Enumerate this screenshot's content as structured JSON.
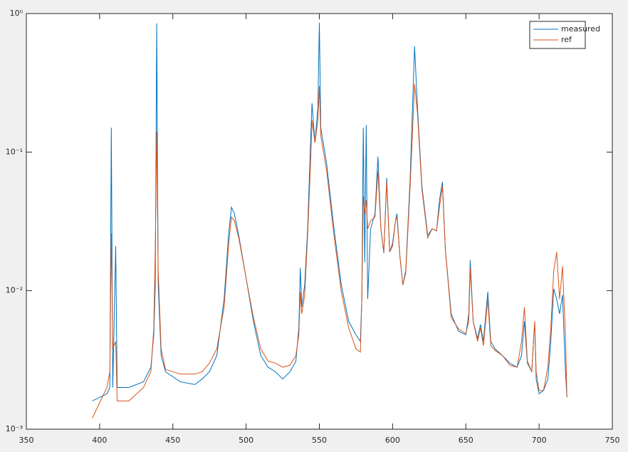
{
  "chart_data": {
    "type": "line",
    "yscale": "log",
    "legend": "upper right",
    "box": true,
    "x": [
      395,
      405,
      407,
      408,
      409,
      411,
      412,
      420,
      430,
      435,
      437,
      438,
      439,
      440,
      442,
      445,
      455,
      465,
      470,
      475,
      480,
      485,
      488,
      490,
      492,
      495,
      500,
      505,
      510,
      515,
      520,
      525,
      530,
      534,
      536,
      537,
      538,
      540,
      542,
      544,
      545,
      547,
      549,
      550,
      551,
      555,
      560,
      565,
      570,
      575,
      578,
      579,
      580,
      581,
      582,
      583,
      585,
      588,
      590,
      592,
      594,
      596,
      598,
      600,
      602,
      603,
      605,
      607,
      609,
      612,
      615,
      617,
      620,
      624,
      627,
      630,
      632,
      634,
      636,
      640,
      645,
      650,
      652,
      653,
      655,
      658,
      660,
      662,
      665,
      667,
      670,
      675,
      680,
      685,
      688,
      690,
      692,
      695,
      697,
      698,
      700,
      703,
      706,
      708,
      710,
      712,
      714,
      716,
      718,
      719
    ],
    "series": [
      {
        "name": "measured",
        "color": "#0072bd",
        "values": [
          0.0016,
          0.0018,
          0.002,
          0.15,
          0.002,
          0.021,
          0.002,
          0.002,
          0.0022,
          0.0028,
          0.0048,
          0.011,
          0.85,
          0.011,
          0.0034,
          0.0026,
          0.0022,
          0.0021,
          0.0023,
          0.0026,
          0.0034,
          0.0087,
          0.025,
          0.04,
          0.036,
          0.025,
          0.0123,
          0.006,
          0.0034,
          0.0028,
          0.0026,
          0.0023,
          0.0026,
          0.0031,
          0.0054,
          0.0146,
          0.0076,
          0.011,
          0.028,
          0.117,
          0.225,
          0.117,
          0.21,
          0.86,
          0.15,
          0.082,
          0.028,
          0.011,
          0.006,
          0.0048,
          0.0043,
          0.0087,
          0.15,
          0.016,
          0.157,
          0.0087,
          0.028,
          0.036,
          0.093,
          0.028,
          0.0187,
          0.065,
          0.019,
          0.022,
          0.032,
          0.036,
          0.0177,
          0.011,
          0.014,
          0.065,
          0.58,
          0.21,
          0.057,
          0.025,
          0.028,
          0.027,
          0.045,
          0.061,
          0.02,
          0.0068,
          0.0051,
          0.0048,
          0.0068,
          0.0166,
          0.006,
          0.0045,
          0.0057,
          0.0043,
          0.0098,
          0.0043,
          0.0038,
          0.0034,
          0.003,
          0.0028,
          0.0034,
          0.006,
          0.003,
          0.0026,
          0.006,
          0.0023,
          0.0018,
          0.0019,
          0.0023,
          0.0043,
          0.0103,
          0.0087,
          0.0068,
          0.0093,
          0.0026,
          0.0017
        ]
      },
      {
        "name": "ref",
        "color": "#d95319",
        "values": [
          0.0012,
          0.002,
          0.0026,
          0.026,
          0.0038,
          0.0043,
          0.0016,
          0.0016,
          0.002,
          0.0026,
          0.0054,
          0.02,
          0.14,
          0.014,
          0.0038,
          0.0027,
          0.0025,
          0.0025,
          0.0026,
          0.003,
          0.0038,
          0.0076,
          0.021,
          0.034,
          0.032,
          0.024,
          0.0123,
          0.0064,
          0.0038,
          0.0031,
          0.003,
          0.0028,
          0.0029,
          0.0034,
          0.0048,
          0.0098,
          0.0068,
          0.0093,
          0.025,
          0.082,
          0.17,
          0.117,
          0.17,
          0.3,
          0.13,
          0.073,
          0.025,
          0.0098,
          0.0054,
          0.0038,
          0.0036,
          0.0087,
          0.048,
          0.036,
          0.045,
          0.028,
          0.032,
          0.034,
          0.073,
          0.028,
          0.019,
          0.061,
          0.019,
          0.021,
          0.032,
          0.034,
          0.0177,
          0.011,
          0.0134,
          0.057,
          0.31,
          0.19,
          0.054,
          0.024,
          0.028,
          0.027,
          0.04,
          0.057,
          0.02,
          0.0064,
          0.0053,
          0.0049,
          0.006,
          0.0146,
          0.006,
          0.0043,
          0.0054,
          0.004,
          0.0087,
          0.004,
          0.0037,
          0.0034,
          0.0029,
          0.0028,
          0.0043,
          0.0076,
          0.0031,
          0.0026,
          0.006,
          0.0026,
          0.0019,
          0.0019,
          0.0028,
          0.0054,
          0.0139,
          0.019,
          0.0087,
          0.015,
          0.0048,
          0.0017
        ]
      }
    ],
    "xlim": [
      350,
      750
    ],
    "xticks": [
      350,
      400,
      450,
      500,
      550,
      600,
      650,
      700,
      750
    ],
    "ylim": [
      0.001,
      1
    ],
    "yticks": [
      {
        "value": 0.001,
        "label": "10⁻³"
      },
      {
        "value": 0.01,
        "label": "10⁻²"
      },
      {
        "value": 0.1,
        "label": "10⁻¹"
      },
      {
        "value": 1,
        "label": "10⁰"
      }
    ]
  }
}
